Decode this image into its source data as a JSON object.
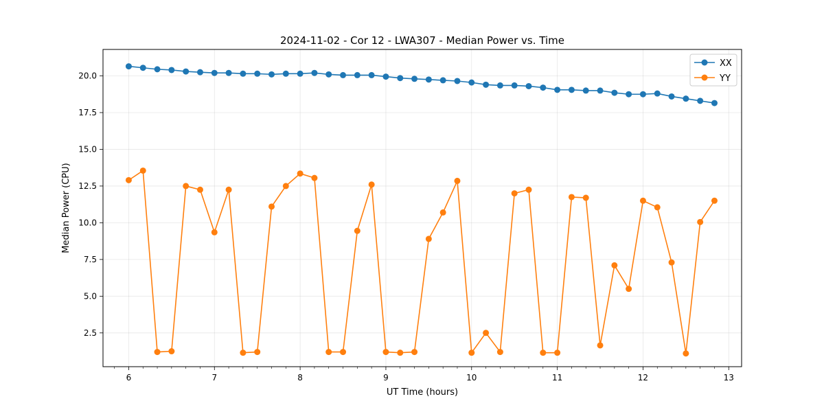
{
  "chart_data": {
    "type": "line",
    "title": "2024-11-02 - Cor 12 - LWA307 - Median Power vs. Time",
    "xlabel": "UT Time (hours)",
    "ylabel": "Median Power (CPU)",
    "xlim": [
      5.7,
      13.15
    ],
    "ylim": [
      0.2,
      21.8
    ],
    "xticks": [
      6,
      7,
      8,
      9,
      10,
      11,
      12,
      13
    ],
    "xtick_labels": [
      "6",
      "7",
      "8",
      "9",
      "10",
      "11",
      "12",
      "13"
    ],
    "yticks": [
      2.5,
      5.0,
      7.5,
      10.0,
      12.5,
      15.0,
      17.5,
      20.0
    ],
    "ytick_labels": [
      "2.5",
      "5.0",
      "7.5",
      "10.0",
      "12.5",
      "15.0",
      "17.5",
      "20.0"
    ],
    "grid": true,
    "legend_position": "top-right",
    "x": [
      6.0,
      6.1667,
      6.3333,
      6.5,
      6.6667,
      6.8333,
      7.0,
      7.1667,
      7.3333,
      7.5,
      7.6667,
      7.8333,
      8.0,
      8.1667,
      8.3333,
      8.5,
      8.6667,
      8.8333,
      9.0,
      9.1667,
      9.3333,
      9.5,
      9.6667,
      9.8333,
      10.0,
      10.1667,
      10.3333,
      10.5,
      10.6667,
      10.8333,
      11.0,
      11.1667,
      11.3333,
      11.5,
      11.6667,
      11.8333,
      12.0,
      12.1667,
      12.3333,
      12.5,
      12.6667,
      12.8333
    ],
    "series": [
      {
        "name": "XX",
        "color": "#1f77b4",
        "values": [
          20.65,
          20.55,
          20.45,
          20.4,
          20.3,
          20.25,
          20.2,
          20.2,
          20.15,
          20.15,
          20.1,
          20.15,
          20.15,
          20.2,
          20.1,
          20.05,
          20.05,
          20.05,
          19.95,
          19.85,
          19.8,
          19.75,
          19.7,
          19.65,
          19.55,
          19.4,
          19.35,
          19.35,
          19.3,
          19.2,
          19.05,
          19.05,
          19.0,
          19.0,
          18.85,
          18.75,
          18.75,
          18.8,
          18.6,
          18.45,
          18.3,
          18.15
        ]
      },
      {
        "name": "YY",
        "color": "#ff7f0e",
        "values": [
          12.9,
          13.55,
          1.2,
          1.25,
          12.5,
          12.25,
          9.35,
          12.25,
          1.15,
          1.2,
          11.1,
          12.5,
          13.35,
          13.05,
          1.2,
          1.2,
          9.45,
          12.6,
          1.2,
          1.15,
          1.2,
          8.9,
          10.7,
          12.85,
          1.15,
          2.5,
          1.2,
          12.0,
          12.25,
          1.15,
          1.15,
          11.75,
          11.7,
          1.65,
          7.1,
          5.5,
          11.5,
          11.05,
          7.3,
          1.1,
          10.05,
          11.5
        ]
      }
    ]
  }
}
